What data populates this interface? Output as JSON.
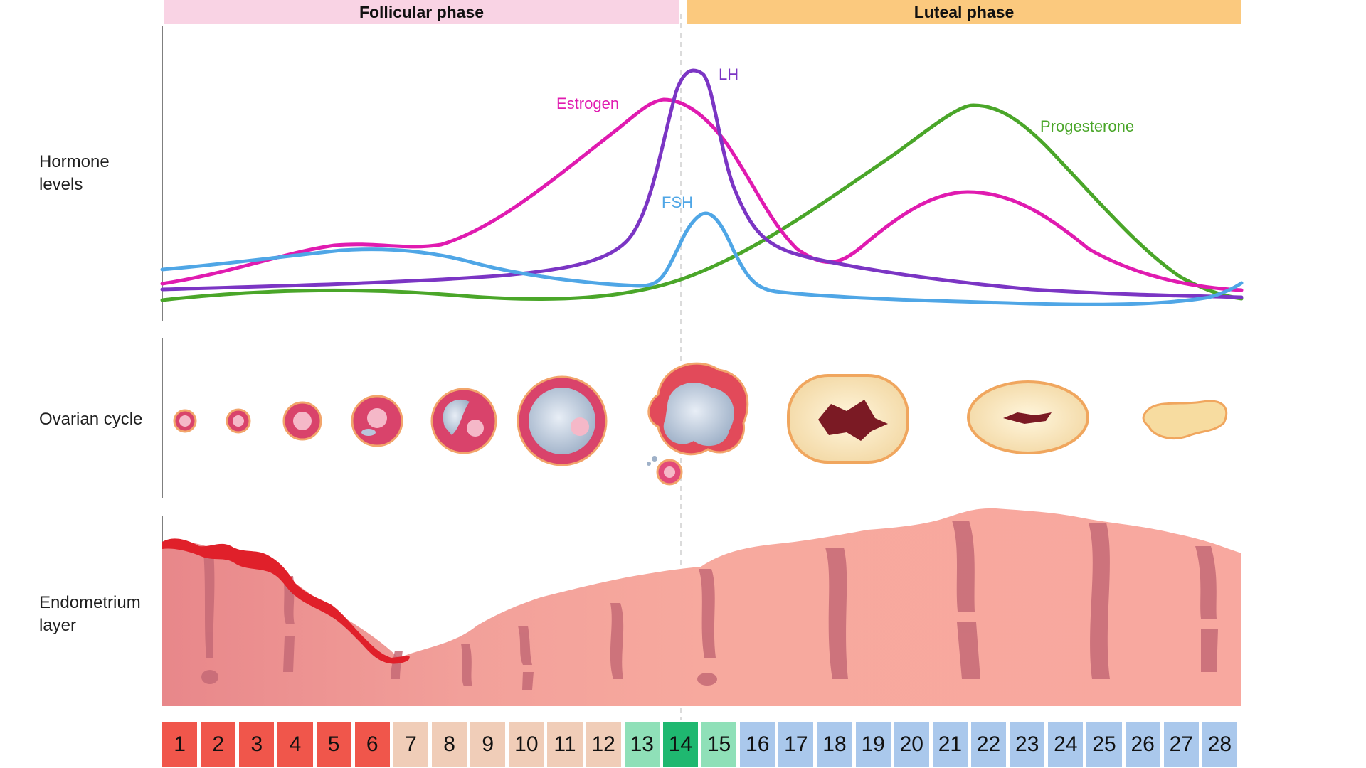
{
  "phases": {
    "follicular": "Follicular phase",
    "luteal": "Luteal phase"
  },
  "row_labels": {
    "hormone_line1": "Hormone",
    "hormone_line2": "levels",
    "ovarian": "Ovarian cycle",
    "endometrium_line1": "Endometrium",
    "endometrium_line2": "layer"
  },
  "curve_labels": {
    "lh": "LH",
    "estrogen": "Estrogen",
    "fsh": "FSH",
    "progesterone": "Progesterone"
  },
  "colors": {
    "follicular_bar": "#f9d3e4",
    "luteal_bar": "#fbc97e",
    "estrogen": "#e01bb0",
    "lh": "#7b35c4",
    "fsh": "#4fa6e6",
    "progesterone": "#4aa629",
    "menstrual": "#f0564b",
    "follicular_days": "#f0cdb8",
    "ovulation_window": "#8fe0b8",
    "ovulation_day": "#1fb870",
    "luteal_days": "#aac8ec"
  },
  "days": [
    {
      "label": "1",
      "kind": "menstrual"
    },
    {
      "label": "2",
      "kind": "menstrual"
    },
    {
      "label": "3",
      "kind": "menstrual"
    },
    {
      "label": "4",
      "kind": "menstrual"
    },
    {
      "label": "5",
      "kind": "menstrual"
    },
    {
      "label": "6",
      "kind": "menstrual"
    },
    {
      "label": "7",
      "kind": "follicular"
    },
    {
      "label": "8",
      "kind": "follicular"
    },
    {
      "label": "9",
      "kind": "follicular"
    },
    {
      "label": "10",
      "kind": "follicular"
    },
    {
      "label": "11",
      "kind": "follicular"
    },
    {
      "label": "12",
      "kind": "follicular"
    },
    {
      "label": "13",
      "kind": "ovulation-window"
    },
    {
      "label": "14",
      "kind": "ovulation-day"
    },
    {
      "label": "15",
      "kind": "ovulation-window"
    },
    {
      "label": "16",
      "kind": "luteal"
    },
    {
      "label": "17",
      "kind": "luteal"
    },
    {
      "label": "18",
      "kind": "luteal"
    },
    {
      "label": "19",
      "kind": "luteal"
    },
    {
      "label": "20",
      "kind": "luteal"
    },
    {
      "label": "21",
      "kind": "luteal"
    },
    {
      "label": "22",
      "kind": "luteal"
    },
    {
      "label": "23",
      "kind": "luteal"
    },
    {
      "label": "24",
      "kind": "luteal"
    },
    {
      "label": "25",
      "kind": "luteal"
    },
    {
      "label": "26",
      "kind": "luteal"
    },
    {
      "label": "27",
      "kind": "luteal"
    },
    {
      "label": "28",
      "kind": "luteal"
    }
  ]
}
